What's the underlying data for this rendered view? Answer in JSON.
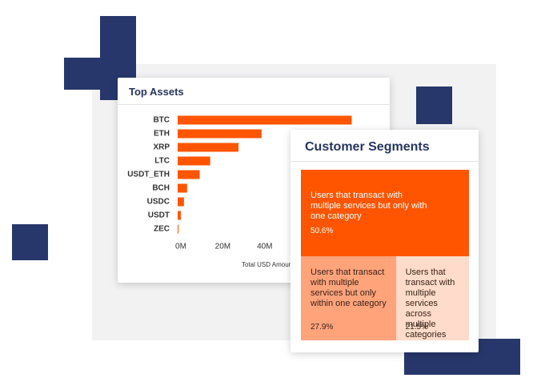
{
  "chart_data": [
    {
      "type": "bar",
      "orientation": "horizontal",
      "title": "Top Assets",
      "categories": [
        "BTC",
        "ETH",
        "XRP",
        "LTC",
        "USDT_ETH",
        "BCH",
        "USDC",
        "USDT",
        "ZEC"
      ],
      "values": [
        83,
        40,
        29,
        15.5,
        10.5,
        4.5,
        3,
        1.5,
        0.4
      ],
      "color": "#ff5500",
      "xlim": [
        0,
        85
      ],
      "xticks": [
        {
          "value": 0,
          "label": "0M"
        },
        {
          "value": 20,
          "label": "20M"
        },
        {
          "value": 40,
          "label": "40M"
        }
      ],
      "xlabel": "Total USD Amount"
    },
    {
      "type": "treemap",
      "title": "Customer Segments",
      "categories": [
        "Users that transact with multiple services but only with one category",
        "Users that transact with multiple services but only within one category",
        "Users that transact with multiple services across multiple categories"
      ],
      "values": [
        50.6,
        27.9,
        21.5
      ],
      "value_labels": [
        "50.6%",
        "27.9%",
        "21.5%"
      ],
      "colors": [
        "#ff5500",
        "#ffa37b",
        "#fedbca"
      ]
    }
  ]
}
